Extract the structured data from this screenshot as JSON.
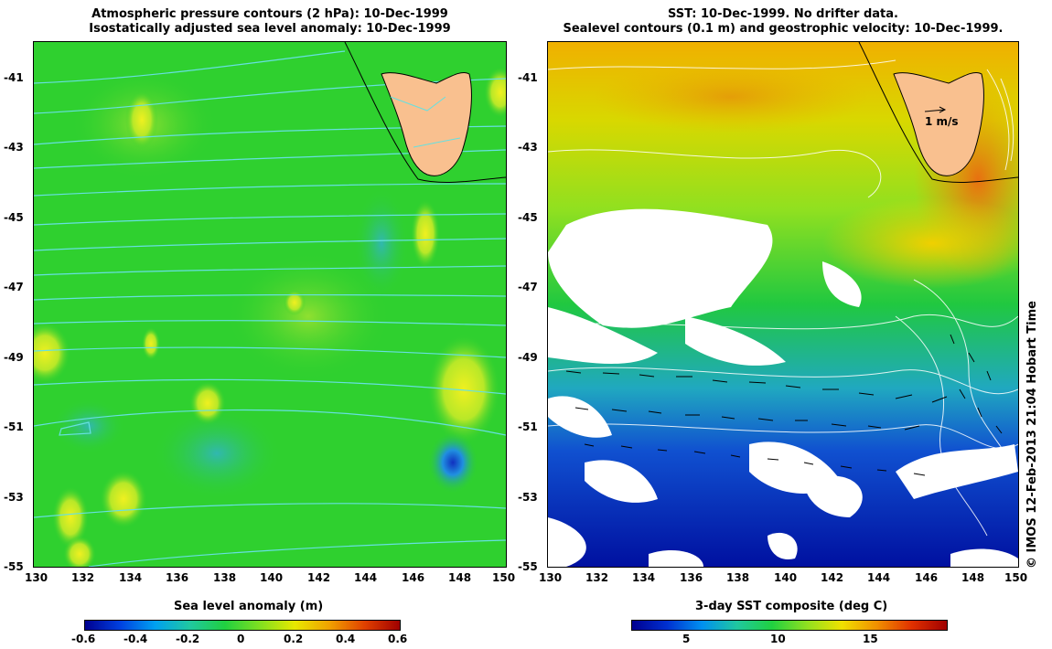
{
  "left_panel": {
    "title_line1": "Atmospheric pressure contours (2 hPa): 10-Dec-1999",
    "title_line2": "Isostatically adjusted sea level anomaly: 10-Dec-1999",
    "colorbar_label": "Sea level anomaly (m)",
    "colorbar_ticks": [
      "-0.6",
      "-0.4",
      "-0.2",
      "0",
      "0.2",
      "0.4",
      "0.6"
    ]
  },
  "right_panel": {
    "title_line1": "SST: 10-Dec-1999. No drifter data.",
    "title_line2": "Sealevel contours (0.1 m) and geostrophic velocity: 10-Dec-1999.",
    "colorbar_label": "3-day SST composite (deg C)",
    "colorbar_ticks": [
      "5",
      "10",
      "15"
    ],
    "velocity_scale_label": "1 m/s"
  },
  "axes": {
    "lat_ticks": [
      "-41",
      "-43",
      "-45",
      "-47",
      "-49",
      "-51",
      "-53",
      "-55"
    ],
    "lon_ticks": [
      "130",
      "132",
      "134",
      "136",
      "138",
      "140",
      "142",
      "144",
      "146",
      "148",
      "150"
    ],
    "lat_range": [
      -55,
      -40
    ],
    "lon_range": [
      130,
      150
    ]
  },
  "credit": "© IMOS 12-Feb-2013 21:04 Hobart Time",
  "colors": {
    "land": "#f9c08f",
    "ocean_green": "#22cc22",
    "cold_blue": "#0000a0",
    "contour_cyan": "#66e0e0"
  }
}
